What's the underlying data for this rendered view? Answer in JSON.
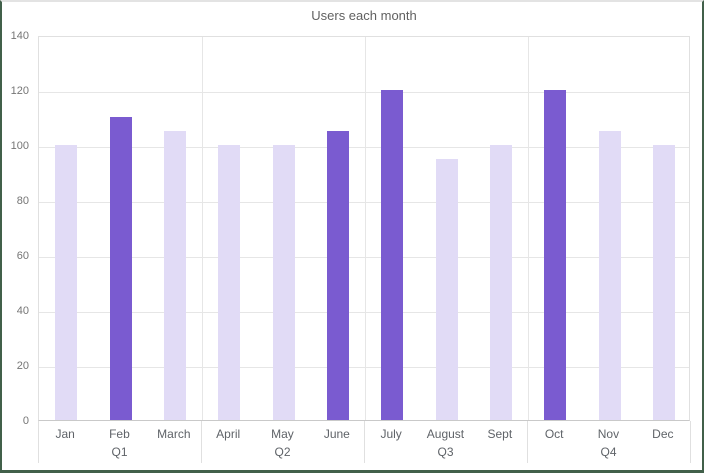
{
  "window": {
    "background": "#ffffff",
    "selection_border_color": "#41604a",
    "top_border_color": "#e3e3e3"
  },
  "chart_data": {
    "type": "bar",
    "title": "Users each month",
    "categories": [
      "Jan",
      "Feb",
      "March",
      "April",
      "May",
      "June",
      "July",
      "August",
      "Sept",
      "Oct",
      "Nov",
      "Dec"
    ],
    "values": [
      100,
      110,
      105,
      100,
      100,
      105,
      120,
      95,
      100,
      120,
      105,
      100
    ],
    "highlighted_categories": [
      "Feb",
      "June",
      "July",
      "Oct"
    ],
    "highlight_flags": [
      0,
      1,
      0,
      0,
      0,
      1,
      1,
      0,
      0,
      1,
      0,
      0
    ],
    "group_labels": [
      "Q1",
      "Q2",
      "Q3",
      "Q4"
    ],
    "group_size": 3,
    "xlabel": "",
    "ylabel": "",
    "ylim": [
      0,
      140
    ],
    "ytick_step": 20,
    "yticks": [
      0,
      20,
      40,
      60,
      80,
      100,
      120,
      140
    ],
    "grid": true,
    "legend": "none",
    "colors": {
      "bar_default": "#e1dbf6",
      "bar_highlight": "#7a5bd0",
      "gridline": "#e6e6e6",
      "frame": "#e0e0e0",
      "baseline": "#c9c9c9",
      "title_text": "#616161",
      "axis_tick_text": "#757575",
      "category_text": "#5f6368"
    }
  }
}
